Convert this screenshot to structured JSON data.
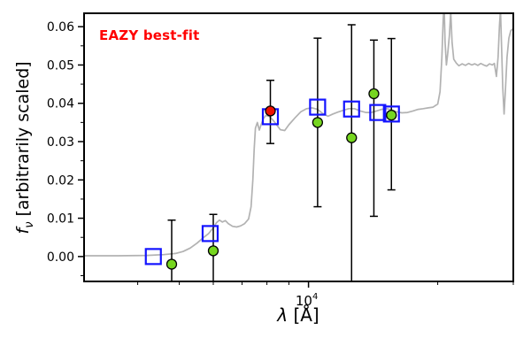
{
  "figure": {
    "background": "#ffffff"
  },
  "annotation": {
    "label": "EAZY best-fit",
    "color": "#ff0000"
  },
  "chart_data": {
    "type": "line",
    "title": "",
    "x_scale": "log",
    "grid": false,
    "legend": "none",
    "xlabel": "λ [Å]",
    "ylabel": "f_ν [arbitrarily scaled]",
    "xlabel_parts": {
      "lambda": "λ",
      "rest": " [Å]"
    },
    "ylabel_parts": {
      "f": "f",
      "sub": "ν",
      "rest": " [arbitrarily scaled]"
    },
    "xlim": [
      3000,
      30000
    ],
    "ylim": [
      -0.0065,
      0.0635
    ],
    "xtick_major": {
      "value": 10000,
      "base": "10",
      "exp": "4"
    },
    "xticks_minor": [
      4000,
      5000,
      6000,
      7000,
      8000,
      9000,
      20000,
      30000
    ],
    "yticks": [
      {
        "value": 0.0,
        "label": "0.00"
      },
      {
        "value": 0.01,
        "label": "0.01"
      },
      {
        "value": 0.02,
        "label": "0.02"
      },
      {
        "value": 0.03,
        "label": "0.03"
      },
      {
        "value": 0.04,
        "label": "0.04"
      },
      {
        "value": 0.05,
        "label": "0.05"
      },
      {
        "value": 0.06,
        "label": "0.06"
      }
    ],
    "yticks_minor": [
      -0.005,
      0.005,
      0.015,
      0.025,
      0.035,
      0.045,
      0.055
    ],
    "series": [
      {
        "name": "model-spectrum",
        "label": "EAZY best-fit model spectrum",
        "type": "line",
        "color": "#b2b2b2",
        "points": [
          [
            3000,
            0.0002
          ],
          [
            3600,
            0.0002
          ],
          [
            4200,
            0.0003
          ],
          [
            4600,
            0.0005
          ],
          [
            4900,
            0.0008
          ],
          [
            5100,
            0.0013
          ],
          [
            5300,
            0.0022
          ],
          [
            5500,
            0.0035
          ],
          [
            5700,
            0.005
          ],
          [
            5850,
            0.006
          ],
          [
            6000,
            0.0075
          ],
          [
            6100,
            0.0088
          ],
          [
            6200,
            0.0095
          ],
          [
            6300,
            0.009
          ],
          [
            6400,
            0.0094
          ],
          [
            6500,
            0.0086
          ],
          [
            6650,
            0.0079
          ],
          [
            6800,
            0.0077
          ],
          [
            6950,
            0.008
          ],
          [
            7100,
            0.0086
          ],
          [
            7250,
            0.0098
          ],
          [
            7350,
            0.013
          ],
          [
            7420,
            0.02
          ],
          [
            7470,
            0.028
          ],
          [
            7520,
            0.0335
          ],
          [
            7600,
            0.035
          ],
          [
            7680,
            0.033
          ],
          [
            7760,
            0.0345
          ],
          [
            7850,
            0.036
          ],
          [
            7950,
            0.0368
          ],
          [
            8100,
            0.0366
          ],
          [
            8250,
            0.0357
          ],
          [
            8400,
            0.0346
          ],
          [
            8600,
            0.0331
          ],
          [
            8800,
            0.0329
          ],
          [
            9000,
            0.0344
          ],
          [
            9300,
            0.0362
          ],
          [
            9600,
            0.0378
          ],
          [
            9900,
            0.0386
          ],
          [
            10200,
            0.0388
          ],
          [
            10500,
            0.0384
          ],
          [
            10800,
            0.0373
          ],
          [
            11100,
            0.0366
          ],
          [
            11400,
            0.0372
          ],
          [
            11700,
            0.0377
          ],
          [
            12000,
            0.0381
          ],
          [
            12400,
            0.0386
          ],
          [
            12800,
            0.0386
          ],
          [
            13200,
            0.038
          ],
          [
            13600,
            0.0376
          ],
          [
            14000,
            0.0376
          ],
          [
            14400,
            0.038
          ],
          [
            14800,
            0.0384
          ],
          [
            15200,
            0.0386
          ],
          [
            15600,
            0.0383
          ],
          [
            16000,
            0.0378
          ],
          [
            16500,
            0.0375
          ],
          [
            17000,
            0.0376
          ],
          [
            17500,
            0.038
          ],
          [
            18000,
            0.0384
          ],
          [
            18500,
            0.0386
          ],
          [
            19000,
            0.0388
          ],
          [
            19500,
            0.039
          ],
          [
            20000,
            0.0398
          ],
          [
            20250,
            0.043
          ],
          [
            20450,
            0.052
          ],
          [
            20600,
            0.062
          ],
          [
            20700,
            0.066
          ],
          [
            20800,
            0.056
          ],
          [
            20950,
            0.05
          ],
          [
            21100,
            0.053
          ],
          [
            21300,
            0.058
          ],
          [
            21450,
            0.064
          ],
          [
            21600,
            0.056
          ],
          [
            21800,
            0.0515
          ],
          [
            22100,
            0.0505
          ],
          [
            22400,
            0.0498
          ],
          [
            22800,
            0.0503
          ],
          [
            23200,
            0.0499
          ],
          [
            23600,
            0.0504
          ],
          [
            24000,
            0.05
          ],
          [
            24400,
            0.0503
          ],
          [
            24800,
            0.0499
          ],
          [
            25200,
            0.0504
          ],
          [
            25600,
            0.05
          ],
          [
            26000,
            0.0497
          ],
          [
            26400,
            0.0503
          ],
          [
            26800,
            0.05
          ],
          [
            27100,
            0.0504
          ],
          [
            27400,
            0.047
          ],
          [
            27650,
            0.052
          ],
          [
            27850,
            0.06
          ],
          [
            28000,
            0.0645
          ],
          [
            28150,
            0.056
          ],
          [
            28350,
            0.044
          ],
          [
            28550,
            0.0372
          ],
          [
            28750,
            0.043
          ],
          [
            29000,
            0.052
          ],
          [
            29300,
            0.057
          ],
          [
            29600,
            0.059
          ],
          [
            30000,
            0.0595
          ]
        ]
      },
      {
        "name": "model-photometry",
        "label": "model photometry (open squares)",
        "type": "scatter",
        "marker": "open-square",
        "color": "#1414ff",
        "points": [
          [
            4350,
            0.0
          ],
          [
            5900,
            0.006
          ],
          [
            8150,
            0.0365
          ],
          [
            10500,
            0.039
          ],
          [
            12600,
            0.0385
          ],
          [
            14500,
            0.0376
          ],
          [
            15600,
            0.0372
          ]
        ]
      },
      {
        "name": "observed-photometry",
        "label": "observed photometry (filled circles with error bars)",
        "type": "scatter",
        "marker": "filled-circle",
        "color": "#76d61f",
        "errorbars": true,
        "points": [
          {
            "x": 4800,
            "y": -0.002,
            "err_up": 0.0115,
            "err_down": 0.0115
          },
          {
            "x": 6000,
            "y": 0.0015,
            "err_up": 0.0095,
            "err_down": 0.0095
          },
          {
            "x": 10500,
            "y": 0.035,
            "err_up": 0.022,
            "err_down": 0.022
          },
          {
            "x": 12600,
            "y": 0.031,
            "err_up": 0.0295,
            "err_down": 0.038
          },
          {
            "x": 14200,
            "y": 0.0425,
            "err_up": 0.014,
            "err_down": 0.032
          },
          {
            "x": 15600,
            "y": 0.0369,
            "err_up": 0.02,
            "err_down": 0.0195
          }
        ]
      },
      {
        "name": "highlighted-point",
        "label": "highlighted observed point (red)",
        "type": "scatter",
        "marker": "filled-circle",
        "color": "#ee1100",
        "errorbars": true,
        "points": [
          {
            "x": 8150,
            "y": 0.038,
            "err_up": 0.008,
            "err_down": 0.0085
          }
        ]
      }
    ]
  }
}
